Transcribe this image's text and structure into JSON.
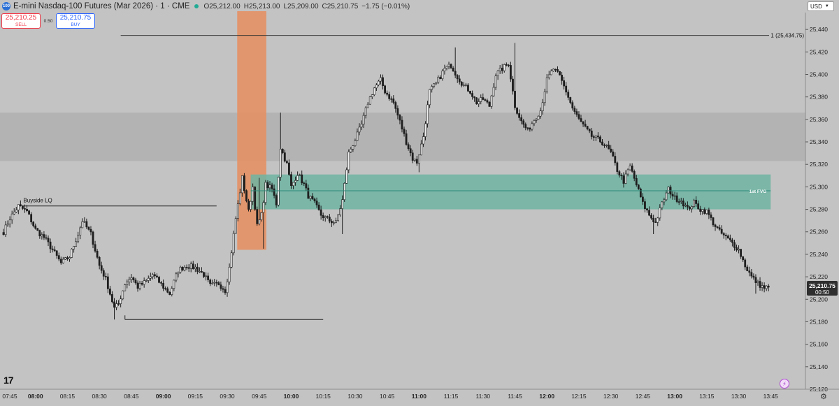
{
  "header": {
    "badge": "100",
    "title": "E-mini Nasdaq-100 Futures (Mar 2026) · 1 · CME",
    "ohlc": [
      {
        "k": "O",
        "v": "25,212.00"
      },
      {
        "k": "H",
        "v": "25,213.00"
      },
      {
        "k": "L",
        "v": "25,209.00"
      },
      {
        "k": "C",
        "v": "25,210.75"
      },
      {
        "k": "",
        "v": "−1.75 (−0.01%)"
      }
    ]
  },
  "trade": {
    "sell_price": "25,210.25",
    "sell_label": "SELL",
    "spread": "0.50",
    "buy_price": "25,210.75",
    "buy_label": "BUY"
  },
  "currency": "USD",
  "logo": "17",
  "colors": {
    "background": "#c3c3c3",
    "candle": "#1e1e1e",
    "orange_zone": "#e88e5e",
    "fvg_zone": "#6fb4a2",
    "fvg_midline": "#2a8a78",
    "gray_band": "#a6a6a6",
    "current_price_bg": "#2f2f2f"
  },
  "chart_data": {
    "type": "candlestick",
    "ylim": [
      25120,
      25455
    ],
    "y_ticks": [
      25120,
      25140,
      25160,
      25180,
      25200,
      25220,
      25240,
      25260,
      25280,
      25300,
      25320,
      25340,
      25360,
      25380,
      25400,
      25420,
      25440
    ],
    "x_ticks": [
      {
        "t": "07:45",
        "i": 0,
        "bold": false
      },
      {
        "t": "08:00",
        "i": 15,
        "bold": true
      },
      {
        "t": "08:15",
        "i": 30,
        "bold": false
      },
      {
        "t": "08:30",
        "i": 45,
        "bold": false
      },
      {
        "t": "08:45",
        "i": 60,
        "bold": false
      },
      {
        "t": "09:00",
        "i": 75,
        "bold": true
      },
      {
        "t": "09:15",
        "i": 90,
        "bold": false
      },
      {
        "t": "09:30",
        "i": 105,
        "bold": false
      },
      {
        "t": "09:45",
        "i": 120,
        "bold": false
      },
      {
        "t": "10:00",
        "i": 135,
        "bold": true
      },
      {
        "t": "10:15",
        "i": 150,
        "bold": false
      },
      {
        "t": "10:30",
        "i": 165,
        "bold": false
      },
      {
        "t": "10:45",
        "i": 180,
        "bold": false
      },
      {
        "t": "11:00",
        "i": 195,
        "bold": true
      },
      {
        "t": "11:15",
        "i": 210,
        "bold": false
      },
      {
        "t": "11:30",
        "i": 225,
        "bold": false
      },
      {
        "t": "11:45",
        "i": 240,
        "bold": false
      },
      {
        "t": "12:00",
        "i": 255,
        "bold": true
      },
      {
        "t": "12:15",
        "i": 270,
        "bold": false
      },
      {
        "t": "12:30",
        "i": 285,
        "bold": false
      },
      {
        "t": "12:45",
        "i": 300,
        "bold": false
      },
      {
        "t": "13:00",
        "i": 315,
        "bold": true
      },
      {
        "t": "13:15",
        "i": 330,
        "bold": false
      },
      {
        "t": "13:30",
        "i": 345,
        "bold": false
      },
      {
        "t": "13:45",
        "i": 360,
        "bold": false
      }
    ],
    "anchors": [
      [
        0,
        25260
      ],
      [
        3,
        25272
      ],
      [
        7,
        25283
      ],
      [
        11,
        25278
      ],
      [
        15,
        25262
      ],
      [
        19,
        25255
      ],
      [
        23,
        25244
      ],
      [
        27,
        25232
      ],
      [
        31,
        25238
      ],
      [
        35,
        25258
      ],
      [
        37,
        25270
      ],
      [
        41,
        25258
      ],
      [
        45,
        25230
      ],
      [
        48,
        25218
      ],
      [
        52,
        25192
      ],
      [
        54,
        25196
      ],
      [
        57,
        25214
      ],
      [
        60,
        25220
      ],
      [
        63,
        25211
      ],
      [
        67,
        25216
      ],
      [
        70,
        25222
      ],
      [
        75,
        25211
      ],
      [
        78,
        25205
      ],
      [
        82,
        25226
      ],
      [
        86,
        25230
      ],
      [
        90,
        25228
      ],
      [
        94,
        25222
      ],
      [
        97,
        25212
      ],
      [
        101,
        25214
      ],
      [
        104,
        25208
      ],
      [
        106,
        25228
      ],
      [
        109,
        25272
      ],
      [
        112,
        25308
      ],
      [
        115,
        25278
      ],
      [
        117,
        25300
      ],
      [
        119,
        25265
      ],
      [
        121,
        25275
      ],
      [
        123,
        25302
      ],
      [
        126,
        25298
      ],
      [
        128,
        25285
      ],
      [
        130,
        25335
      ],
      [
        133,
        25320
      ],
      [
        135,
        25300
      ],
      [
        138,
        25312
      ],
      [
        141,
        25302
      ],
      [
        143,
        25292
      ],
      [
        146,
        25285
      ],
      [
        149,
        25275
      ],
      [
        153,
        25270
      ],
      [
        156,
        25268
      ],
      [
        159,
        25288
      ],
      [
        162,
        25330
      ],
      [
        165,
        25342
      ],
      [
        168,
        25355
      ],
      [
        171,
        25375
      ],
      [
        174,
        25388
      ],
      [
        177,
        25395
      ],
      [
        179,
        25385
      ],
      [
        183,
        25375
      ],
      [
        186,
        25358
      ],
      [
        189,
        25340
      ],
      [
        192,
        25325
      ],
      [
        194,
        25322
      ],
      [
        197,
        25345
      ],
      [
        200,
        25385
      ],
      [
        203,
        25392
      ],
      [
        207,
        25405
      ],
      [
        210,
        25408
      ],
      [
        213,
        25398
      ],
      [
        216,
        25390
      ],
      [
        219,
        25385
      ],
      [
        222,
        25375
      ],
      [
        225,
        25378
      ],
      [
        228,
        25372
      ],
      [
        231,
        25400
      ],
      [
        234,
        25405
      ],
      [
        237,
        25410
      ],
      [
        240,
        25372
      ],
      [
        243,
        25358
      ],
      [
        246,
        25350
      ],
      [
        249,
        25360
      ],
      [
        252,
        25368
      ],
      [
        255,
        25395
      ],
      [
        258,
        25405
      ],
      [
        261,
        25398
      ],
      [
        264,
        25385
      ],
      [
        267,
        25370
      ],
      [
        270,
        25360
      ],
      [
        273,
        25352
      ],
      [
        276,
        25345
      ],
      [
        279,
        25342
      ],
      [
        282,
        25338
      ],
      [
        285,
        25330
      ],
      [
        288,
        25315
      ],
      [
        291,
        25305
      ],
      [
        294,
        25318
      ],
      [
        297,
        25302
      ],
      [
        300,
        25285
      ],
      [
        303,
        25275
      ],
      [
        306,
        25268
      ],
      [
        309,
        25285
      ],
      [
        312,
        25298
      ],
      [
        315,
        25290
      ],
      [
        318,
        25288
      ],
      [
        321,
        25280
      ],
      [
        324,
        25286
      ],
      [
        327,
        25280
      ],
      [
        330,
        25278
      ],
      [
        333,
        25268
      ],
      [
        336,
        25260
      ],
      [
        339,
        25255
      ],
      [
        342,
        25250
      ],
      [
        345,
        25244
      ],
      [
        348,
        25230
      ],
      [
        351,
        25220
      ],
      [
        354,
        25214
      ],
      [
        357,
        25210
      ],
      [
        359,
        25210.75
      ]
    ],
    "fixed_points": [
      {
        "i": 7,
        "h": 25283
      },
      {
        "i": 52,
        "l": 25182
      },
      {
        "i": 104,
        "l": 25204
      },
      {
        "i": 112,
        "h": 25310
      },
      {
        "i": 120,
        "h": 25308
      },
      {
        "i": 122,
        "l": 25245
      },
      {
        "i": 130,
        "h": 25366
      },
      {
        "i": 159,
        "l": 25258
      },
      {
        "i": 195,
        "l": 25313
      },
      {
        "i": 212,
        "h": 25424
      },
      {
        "i": 240,
        "h": 25428
      },
      {
        "i": 305,
        "l": 25258
      },
      {
        "i": 353,
        "l": 25205
      }
    ],
    "current_price": "25,210.75",
    "countdown": "00:50",
    "annotations": {
      "buyside_label": "Buyside LQ",
      "fvg_label": "1st FVG",
      "level_label": "1 (25,434.75)"
    },
    "levels": {
      "top_line": 25434.75,
      "buyside": 25283,
      "sellside": 25182,
      "fvg": {
        "i0": 116,
        "i1": 360,
        "top": 25311,
        "bottom": 25280,
        "mid": 25296.5
      },
      "gray_band": {
        "top": 25366,
        "bottom": 25323
      },
      "orange": {
        "i0": 110,
        "i1": 123,
        "top": 25455,
        "bottom": 25244
      }
    }
  }
}
